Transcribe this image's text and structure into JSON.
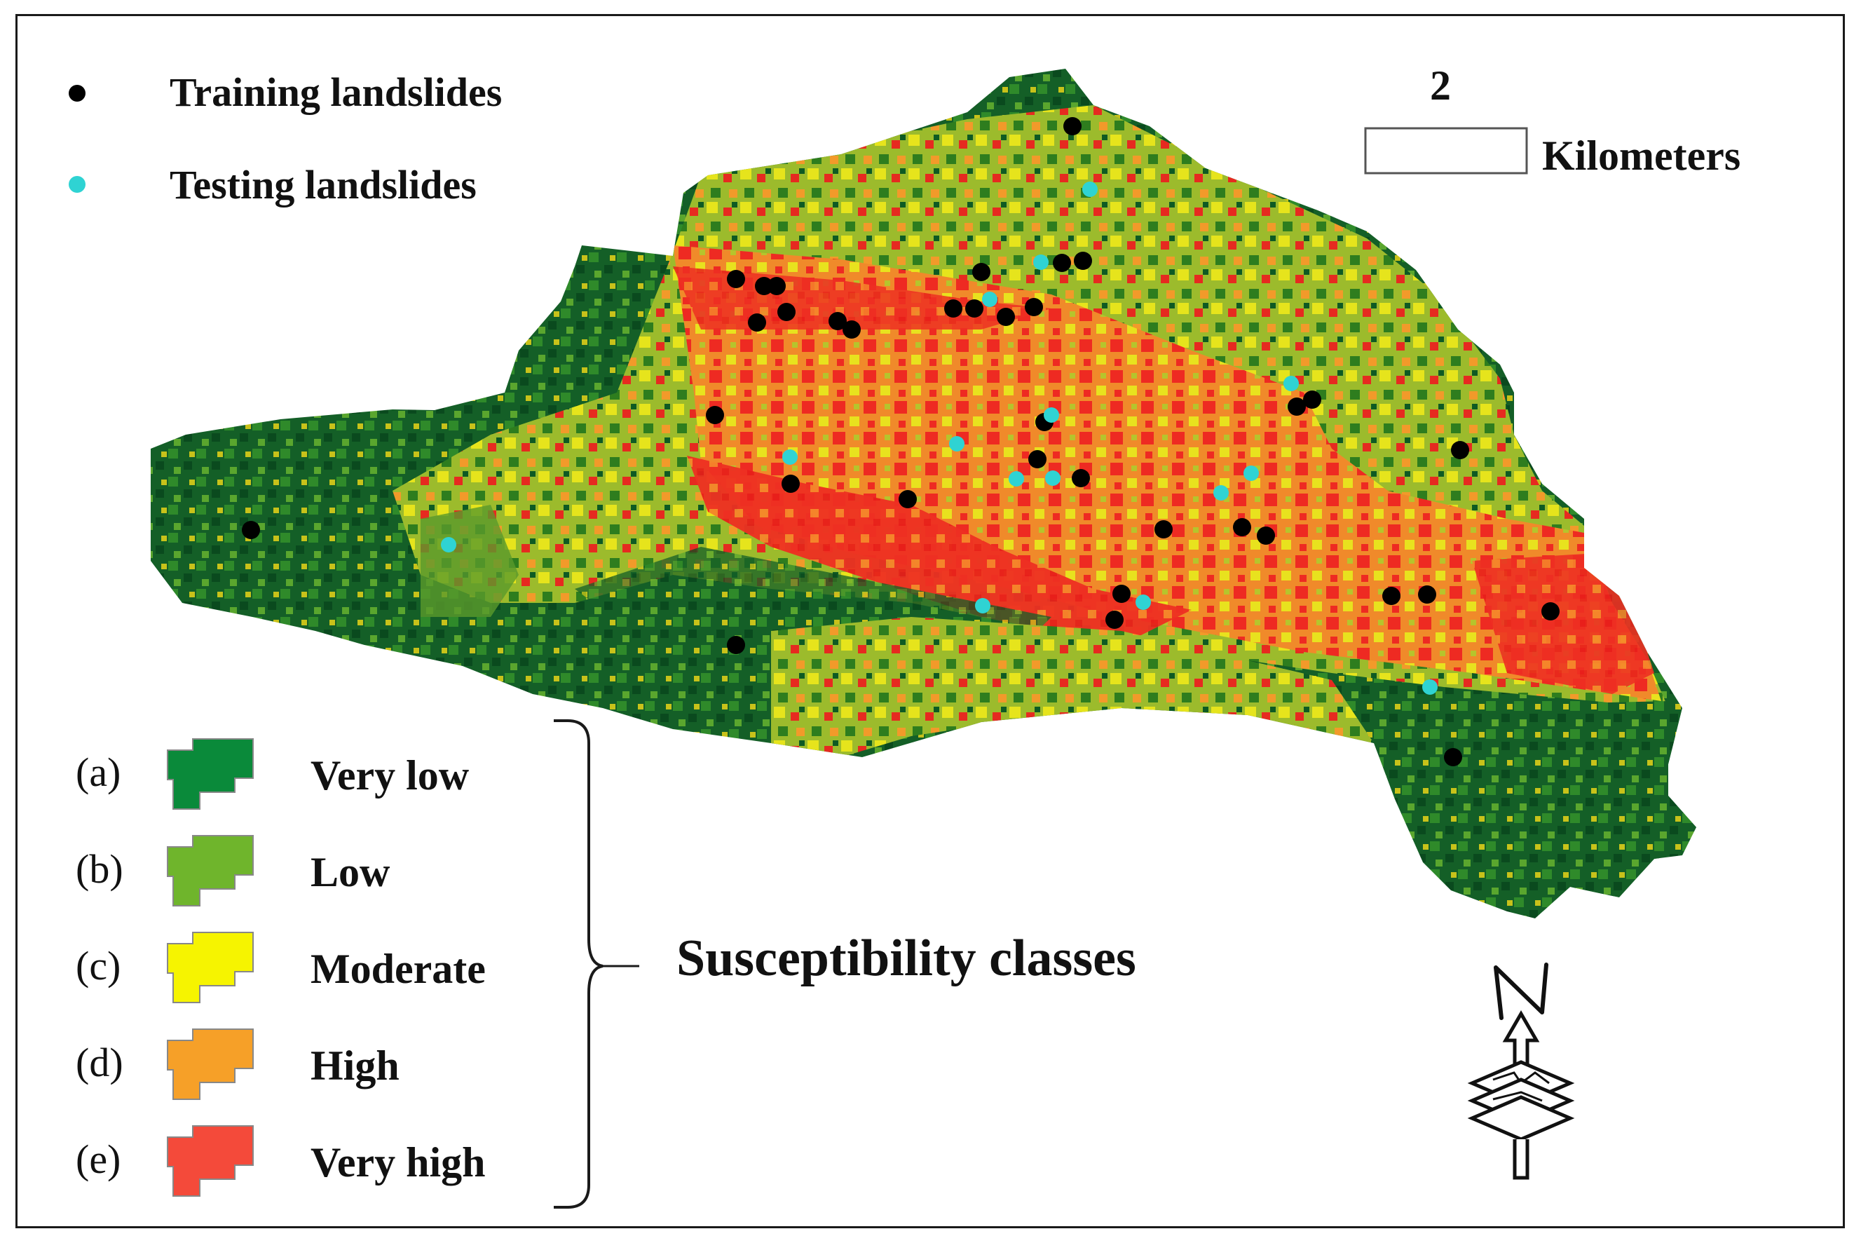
{
  "point_legend": [
    {
      "label": "Training landslides",
      "color": "#000000"
    },
    {
      "label": "Testing landslides",
      "color": "#2fd3d3"
    }
  ],
  "scale_bar": {
    "value": "2",
    "unit": "Kilometers"
  },
  "classes_title": "Susceptibility classes",
  "classes": [
    {
      "letter": "(a)",
      "label": "Very low",
      "color": "#0a8a3a"
    },
    {
      "letter": "(b)",
      "label": "Low",
      "color": "#6fb52c"
    },
    {
      "letter": "(c)",
      "label": "Moderate",
      "color": "#f6f400"
    },
    {
      "letter": "(d)",
      "label": "High",
      "color": "#f6a028"
    },
    {
      "letter": "(e)",
      "label": "Very high",
      "color": "#f44a3a"
    }
  ],
  "north_label": "N",
  "map_colors": {
    "dark_green": "#0e5a23",
    "mid_green": "#2e7d1e",
    "olive": "#a9c233",
    "yellow": "#e8e61e",
    "orange": "#f59a2c",
    "red": "#ee2a22"
  }
}
